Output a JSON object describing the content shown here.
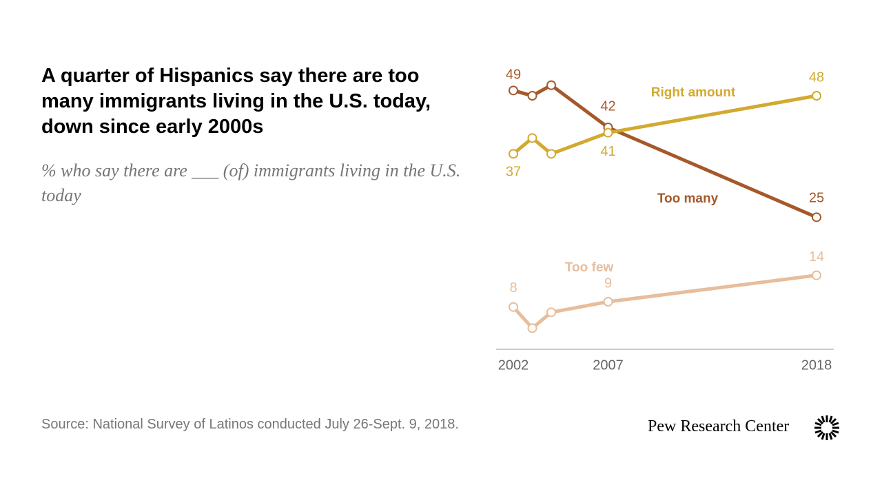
{
  "title": "A quarter of Hispanics say there are too many immigrants living in the U.S. today, down since early 2000s",
  "subtitle": "% who say there are ___ (of) immigrants living in the U.S. today",
  "source": "Source: National Survey of Latinos conducted July 26-Sept. 9, 2018.",
  "logo": "Pew Research Center",
  "chart_data": {
    "type": "line",
    "x": [
      2002,
      2003,
      2004,
      2007,
      2018
    ],
    "xlim": [
      2002,
      2018
    ],
    "xticks": [
      2002,
      2007,
      2018
    ],
    "ylim": [
      0,
      60
    ],
    "series": [
      {
        "name": "Too many",
        "color": "#a5592a",
        "values": [
          49,
          48,
          50,
          42,
          25
        ],
        "value_labels": [
          "49",
          null,
          null,
          "42",
          "25"
        ]
      },
      {
        "name": "Right amount",
        "color": "#d1aa2f",
        "values": [
          37,
          40,
          37,
          41,
          48
        ],
        "value_labels": [
          "37",
          null,
          null,
          "41",
          "48"
        ]
      },
      {
        "name": "Too few",
        "color": "#e8bd9b",
        "values": [
          8,
          4,
          7,
          9,
          14
        ],
        "value_labels": [
          "8",
          null,
          null,
          "9",
          "14"
        ]
      }
    ]
  }
}
